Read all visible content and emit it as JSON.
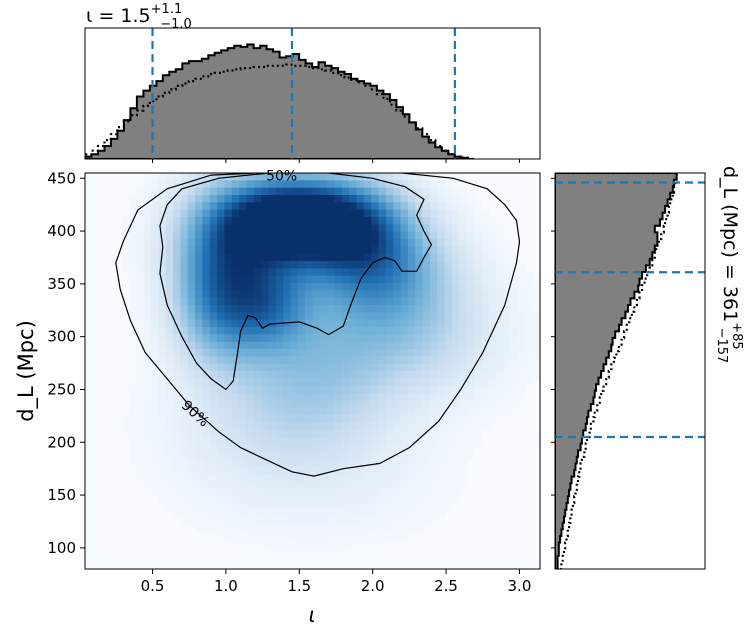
{
  "chart_data": {
    "type": "corner-2d-posterior",
    "x_param": {
      "xlabel": "ι",
      "xlim": [
        0.04,
        3.14
      ],
      "ticks": [
        "0.5",
        "1.0",
        "1.5",
        "2.0",
        "2.5",
        "3.0"
      ]
    },
    "y_param": {
      "ylabel": "d_L (Mpc)",
      "ylim": [
        80,
        455
      ],
      "ticks": [
        "100",
        "150",
        "200",
        "250",
        "300",
        "350",
        "400",
        "450"
      ]
    },
    "top_title": {
      "base": "ι = 1.5",
      "sup": "+1.1",
      "sub": "−1.0"
    },
    "right_title": {
      "base": "d_L (Mpc) = 361",
      "sup": "+85",
      "sub": "−157"
    },
    "iota_quantiles": [
      0.5,
      1.45,
      2.56
    ],
    "dl_quantiles": [
      205,
      361,
      446
    ],
    "contour_labels": [
      "50%",
      "90%"
    ],
    "iota_hist_bins": {
      "start": 0.04,
      "width": 0.0442,
      "solid": [
        0.02,
        0.04,
        0.07,
        0.11,
        0.17,
        0.24,
        0.33,
        0.43,
        0.53,
        0.58,
        0.62,
        0.66,
        0.71,
        0.74,
        0.76,
        0.81,
        0.83,
        0.83,
        0.85,
        0.88,
        0.9,
        0.92,
        0.94,
        0.96,
        0.95,
        0.97,
        0.94,
        0.96,
        0.93,
        0.91,
        0.86,
        0.87,
        0.89,
        0.84,
        0.81,
        0.78,
        0.82,
        0.79,
        0.77,
        0.74,
        0.72,
        0.68,
        0.66,
        0.64,
        0.62,
        0.58,
        0.55,
        0.5,
        0.44,
        0.38,
        0.31,
        0.25,
        0.19,
        0.14,
        0.1,
        0.07,
        0.04,
        0.02,
        0.01,
        0.0
      ],
      "dotted": [
        0.04,
        0.07,
        0.11,
        0.16,
        0.21,
        0.27,
        0.32,
        0.37,
        0.41,
        0.45,
        0.49,
        0.53,
        0.56,
        0.59,
        0.62,
        0.64,
        0.66,
        0.68,
        0.7,
        0.72,
        0.73,
        0.74,
        0.75,
        0.76,
        0.77,
        0.77,
        0.78,
        0.78,
        0.79,
        0.79,
        0.79,
        0.8,
        0.79,
        0.79,
        0.78,
        0.77,
        0.76,
        0.75,
        0.73,
        0.71,
        0.69,
        0.67,
        0.65,
        0.62,
        0.59,
        0.55,
        0.51,
        0.46,
        0.41,
        0.36,
        0.31,
        0.26,
        0.21,
        0.16,
        0.11,
        0.07,
        0.04,
        0.02,
        0.01,
        0.0
      ]
    },
    "dl_hist_bins": {
      "start": 80,
      "width": 6.25,
      "solid": [
        0.02,
        0.02,
        0.03,
        0.03,
        0.04,
        0.05,
        0.06,
        0.07,
        0.08,
        0.09,
        0.1,
        0.11,
        0.12,
        0.13,
        0.15,
        0.16,
        0.17,
        0.18,
        0.2,
        0.21,
        0.22,
        0.24,
        0.25,
        0.26,
        0.28,
        0.3,
        0.31,
        0.32,
        0.34,
        0.36,
        0.38,
        0.4,
        0.42,
        0.44,
        0.45,
        0.47,
        0.5,
        0.52,
        0.55,
        0.57,
        0.59,
        0.62,
        0.65,
        0.66,
        0.68,
        0.71,
        0.74,
        0.76,
        0.78,
        0.8,
        0.8,
        0.78,
        0.82,
        0.84,
        0.86,
        0.88,
        0.9,
        0.92,
        0.93,
        0.95
      ],
      "dotted": [
        0.05,
        0.06,
        0.07,
        0.08,
        0.09,
        0.1,
        0.11,
        0.12,
        0.13,
        0.14,
        0.15,
        0.16,
        0.17,
        0.18,
        0.19,
        0.2,
        0.21,
        0.23,
        0.24,
        0.25,
        0.27,
        0.28,
        0.3,
        0.31,
        0.33,
        0.35,
        0.36,
        0.38,
        0.4,
        0.42,
        0.44,
        0.46,
        0.48,
        0.5,
        0.52,
        0.54,
        0.56,
        0.58,
        0.6,
        0.62,
        0.64,
        0.66,
        0.68,
        0.7,
        0.72,
        0.74,
        0.76,
        0.78,
        0.79,
        0.81,
        0.83,
        0.85,
        0.86,
        0.88,
        0.89,
        0.9,
        0.92,
        0.93,
        0.94,
        0.95
      ]
    },
    "density_blobs": [
      {
        "x": 1.45,
        "y": 412,
        "sx": 0.28,
        "sy": 26,
        "w": 1.0
      },
      {
        "x": 1.85,
        "y": 405,
        "sx": 0.3,
        "sy": 32,
        "w": 0.75
      },
      {
        "x": 1.05,
        "y": 395,
        "sx": 0.28,
        "sy": 40,
        "w": 0.65
      },
      {
        "x": 0.95,
        "y": 330,
        "sx": 0.22,
        "sy": 40,
        "w": 0.55
      },
      {
        "x": 1.3,
        "y": 330,
        "sx": 0.2,
        "sy": 30,
        "w": 0.45
      },
      {
        "x": 2.05,
        "y": 360,
        "sx": 0.35,
        "sy": 35,
        "w": 0.5
      },
      {
        "x": 1.6,
        "y": 280,
        "sx": 0.4,
        "sy": 45,
        "w": 0.3
      },
      {
        "x": 2.3,
        "y": 300,
        "sx": 0.4,
        "sy": 40,
        "w": 0.25
      },
      {
        "x": 1.4,
        "y": 220,
        "sx": 0.5,
        "sy": 40,
        "w": 0.18
      },
      {
        "x": 1.6,
        "y": 160,
        "sx": 0.6,
        "sy": 40,
        "w": 0.07
      }
    ],
    "contour_50": [
      [
        1.3,
        455
      ],
      [
        1.15,
        453
      ],
      [
        0.95,
        450
      ],
      [
        0.7,
        440
      ],
      [
        0.6,
        425
      ],
      [
        0.55,
        405
      ],
      [
        0.57,
        385
      ],
      [
        0.55,
        360
      ],
      [
        0.6,
        330
      ],
      [
        0.7,
        300
      ],
      [
        0.8,
        275
      ],
      [
        0.9,
        260
      ],
      [
        1.0,
        250
      ],
      [
        1.05,
        258
      ],
      [
        1.08,
        285
      ],
      [
        1.1,
        305
      ],
      [
        1.15,
        320
      ],
      [
        1.2,
        318
      ],
      [
        1.25,
        308
      ],
      [
        1.3,
        312
      ],
      [
        1.5,
        314
      ],
      [
        1.62,
        308
      ],
      [
        1.7,
        302
      ],
      [
        1.8,
        310
      ],
      [
        1.85,
        330
      ],
      [
        1.92,
        355
      ],
      [
        2.0,
        370
      ],
      [
        2.08,
        375
      ],
      [
        2.15,
        372
      ],
      [
        2.2,
        362
      ],
      [
        2.3,
        362
      ],
      [
        2.35,
        375
      ],
      [
        2.4,
        387
      ],
      [
        2.35,
        400
      ],
      [
        2.3,
        415
      ],
      [
        2.35,
        430
      ],
      [
        2.22,
        442
      ],
      [
        2.0,
        450
      ],
      [
        1.7,
        455
      ],
      [
        1.5,
        456
      ]
    ],
    "contour_90": [
      [
        1.2,
        455
      ],
      [
        0.9,
        453
      ],
      [
        0.6,
        440
      ],
      [
        0.4,
        420
      ],
      [
        0.3,
        390
      ],
      [
        0.25,
        370
      ],
      [
        0.28,
        345
      ],
      [
        0.35,
        315
      ],
      [
        0.45,
        285
      ],
      [
        0.6,
        260
      ],
      [
        0.75,
        235
      ],
      [
        0.95,
        210
      ],
      [
        1.1,
        195
      ],
      [
        1.25,
        185
      ],
      [
        1.45,
        172
      ],
      [
        1.6,
        168
      ],
      [
        1.8,
        175
      ],
      [
        2.05,
        180
      ],
      [
        2.25,
        195
      ],
      [
        2.45,
        220
      ],
      [
        2.6,
        250
      ],
      [
        2.75,
        285
      ],
      [
        2.9,
        330
      ],
      [
        2.98,
        370
      ],
      [
        3.0,
        390
      ],
      [
        2.98,
        410
      ],
      [
        2.9,
        425
      ],
      [
        2.78,
        440
      ],
      [
        2.55,
        450
      ],
      [
        2.2,
        455
      ],
      [
        1.9,
        456
      ],
      [
        1.5,
        456
      ]
    ]
  }
}
